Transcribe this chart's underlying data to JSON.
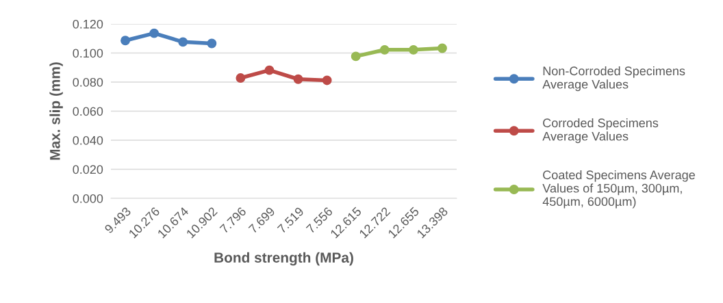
{
  "chart_data": {
    "type": "line",
    "xlabel": "Bond strength (MPa)",
    "ylabel": "Max. slip (mm)",
    "categories": [
      "9.493",
      "10.276",
      "10.674",
      "10.902",
      "7.796",
      "7.699",
      "7.519",
      "7.556",
      "12.615",
      "12.722",
      "12.655",
      "13.398"
    ],
    "series": [
      {
        "name": "Non-Corroded Specimens\nAverage Values",
        "color": "#4a7ebb",
        "values": [
          0.1086,
          0.1136,
          0.1076,
          0.1066,
          null,
          null,
          null,
          null,
          null,
          null,
          null,
          null
        ]
      },
      {
        "name": "Corroded Specimens\nAverage Values",
        "color": "#be4b48",
        "values": [
          null,
          null,
          null,
          null,
          0.0828,
          0.0882,
          0.082,
          0.0812,
          null,
          null,
          null,
          null
        ]
      },
      {
        "name": "Coated Specimens Average\nValues of 150µm, 300µm,\n450µm, 6000µm)",
        "color": "#98b954",
        "values": [
          null,
          null,
          null,
          null,
          null,
          null,
          null,
          null,
          0.0977,
          0.1022,
          0.1022,
          0.1033
        ]
      }
    ],
    "ylim": [
      0,
      0.12
    ],
    "yticks": [
      {
        "value": 0,
        "label": "0.000"
      },
      {
        "value": 0.02,
        "label": "0.020"
      },
      {
        "value": 0.04,
        "label": "0.040"
      },
      {
        "value": 0.06,
        "label": "0.060"
      },
      {
        "value": 0.08,
        "label": "0.080"
      },
      {
        "value": 0.1,
        "label": "0.100"
      },
      {
        "value": 0.12,
        "label": "0.120"
      }
    ],
    "grid": "y",
    "legend": "right",
    "marker": "circle",
    "line_style": "solid"
  }
}
